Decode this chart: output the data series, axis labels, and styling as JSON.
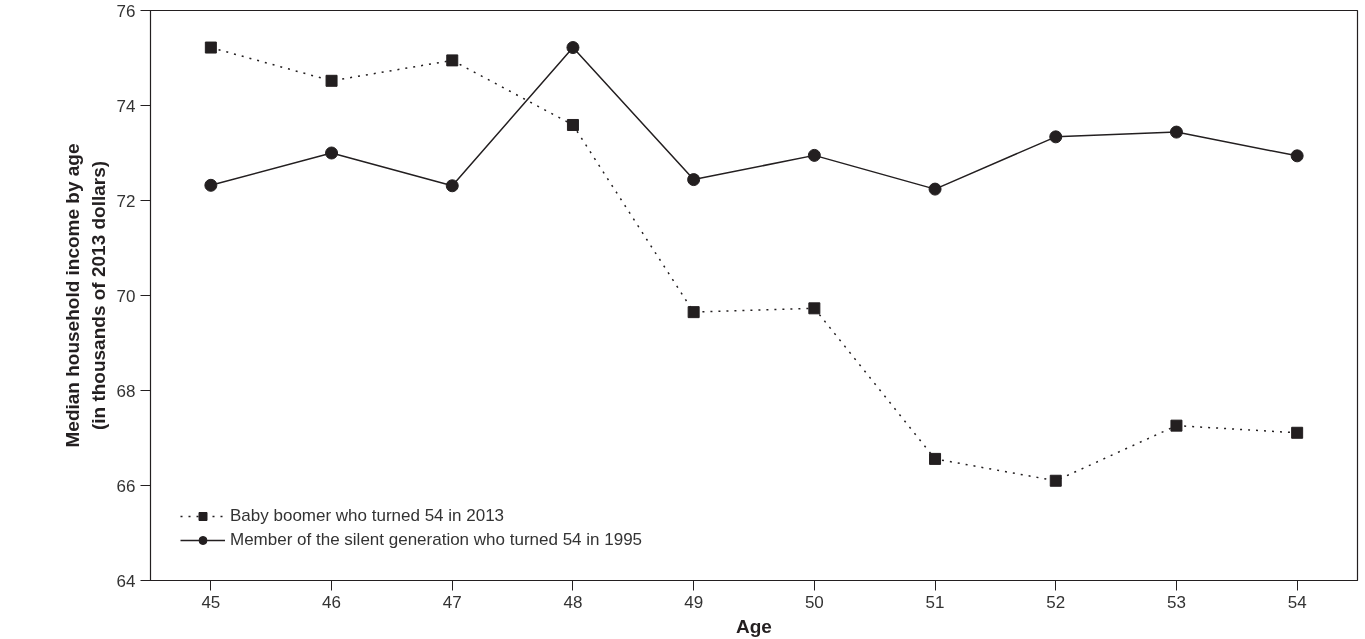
{
  "chart_data": {
    "type": "line",
    "xlabel": "Age",
    "ylabel": "Median household income by age\n(in thousands of 2013 dollars)",
    "x": [
      45,
      46,
      47,
      48,
      49,
      50,
      51,
      52,
      53,
      54
    ],
    "xlim": [
      44.5,
      54.5
    ],
    "xticks": [
      45,
      46,
      47,
      48,
      49,
      50,
      51,
      52,
      53,
      54
    ],
    "ylim": [
      64,
      76
    ],
    "yticks": [
      64,
      66,
      68,
      70,
      72,
      74,
      76
    ],
    "grid": false,
    "legend": "bottom left",
    "series": [
      {
        "name": "Baby boomer who turned 54 in 2013",
        "color": "#231f20",
        "marker": "square",
        "line_style": "dotted",
        "values": [
          75.22,
          74.52,
          74.95,
          73.59,
          69.65,
          69.73,
          66.56,
          66.1,
          67.26,
          67.11
        ]
      },
      {
        "name": "Member of the silent generation who turned 54 in 1995",
        "color": "#231f20",
        "marker": "circle",
        "line_style": "solid",
        "values": [
          72.32,
          73.0,
          72.31,
          75.22,
          72.44,
          72.95,
          72.24,
          73.34,
          73.44,
          72.94
        ]
      }
    ]
  }
}
